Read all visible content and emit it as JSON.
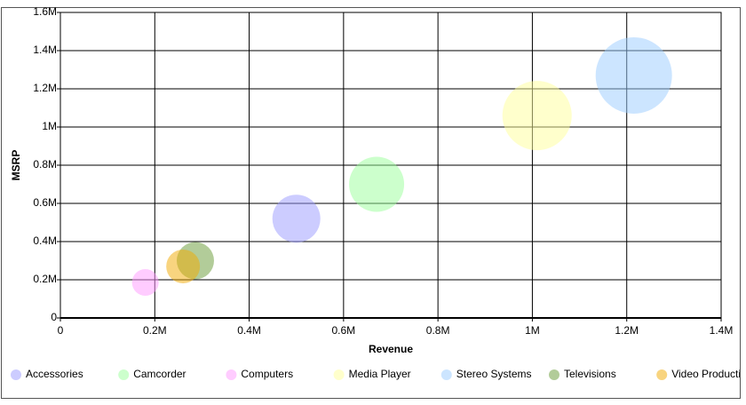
{
  "chart_data": {
    "type": "bubble",
    "x_label": "Revenue",
    "y_label": "MSRP",
    "xlim": [
      0,
      1400000
    ],
    "ylim": [
      0,
      1600000
    ],
    "xticks": [
      0,
      {
        "value": 200000,
        "label": "0.2M"
      },
      {
        "value": 400000,
        "label": "0.4M"
      },
      {
        "value": 600000,
        "label": "0.6M"
      },
      {
        "value": 800000,
        "label": "0.8M"
      },
      {
        "value": 1000000,
        "label": "1M"
      },
      {
        "value": 1200000,
        "label": "1.2M"
      },
      {
        "value": 1400000,
        "label": "1.4M"
      }
    ],
    "yticks": [
      0,
      {
        "value": 200000,
        "label": "0.2M"
      },
      {
        "value": 400000,
        "label": "0.4M"
      },
      {
        "value": 600000,
        "label": "0.6M"
      },
      {
        "value": 800000,
        "label": "0.8M"
      },
      {
        "value": 1000000,
        "label": "1M"
      },
      {
        "value": 1200000,
        "label": "1.2M"
      },
      {
        "value": 1400000,
        "label": "1.4M"
      },
      {
        "value": 1600000,
        "label": "1.6M"
      }
    ],
    "grid": true,
    "legend": "bottom",
    "series": [
      {
        "name": "Accessories",
        "color": "#9999ff",
        "x": [
          500000
        ],
        "values": [
          520000
        ],
        "sizes": [
          729
        ]
      },
      {
        "name": "Camcorder",
        "color": "#99ff99",
        "x": [
          670000
        ],
        "values": [
          700000
        ],
        "sizes": [
          961
        ]
      },
      {
        "name": "Computers",
        "color": "#ff99ff",
        "x": [
          180000
        ],
        "values": [
          186000
        ],
        "sizes": [
          225
        ]
      },
      {
        "name": "Media Player",
        "color": "#ffff99",
        "x": [
          1010000
        ],
        "values": [
          1060000
        ],
        "sizes": [
          1521
        ]
      },
      {
        "name": "Stereo Systems",
        "color": "#99ccff",
        "x": [
          1215000
        ],
        "values": [
          1270000
        ],
        "sizes": [
          1849
        ]
      },
      {
        "name": "Televisions",
        "color": "#669933",
        "x": [
          286000
        ],
        "values": [
          300000
        ],
        "sizes": [
          441
        ]
      },
      {
        "name": "Video Production",
        "color": "#f2a900",
        "x": [
          260000
        ],
        "values": [
          270000
        ],
        "sizes": [
          361
        ]
      }
    ]
  }
}
